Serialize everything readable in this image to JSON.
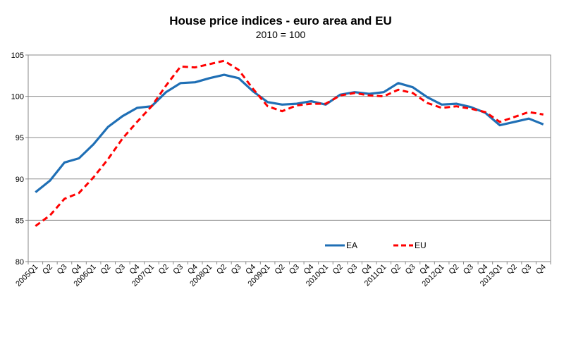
{
  "chart_data": {
    "type": "line",
    "title": "House price indices - euro area and EU",
    "subtitle": "2010 = 100",
    "xlabel": "",
    "ylabel": "",
    "ylim": [
      80,
      105
    ],
    "yticks": [
      80,
      85,
      90,
      95,
      100,
      105
    ],
    "grid": true,
    "legend_position": "bottom-center",
    "categories": [
      "2005Q1",
      "Q2",
      "Q3",
      "Q4",
      "2006Q1",
      "Q2",
      "Q3",
      "Q4",
      "2007Q1",
      "Q2",
      "Q3",
      "Q4",
      "2008Q1",
      "Q2",
      "Q3",
      "Q4",
      "2009Q1",
      "Q2",
      "Q3",
      "Q4",
      "2010Q1",
      "Q2",
      "Q3",
      "Q4",
      "2011Q1",
      "Q2",
      "Q3",
      "Q4",
      "2012Q1",
      "Q2",
      "Q3",
      "Q4",
      "2013Q1",
      "Q2",
      "Q3",
      "Q4"
    ],
    "series": [
      {
        "name": "EA",
        "color": "#1f6fb5",
        "style": "solid",
        "values": [
          88.4,
          89.8,
          92.0,
          92.5,
          94.2,
          96.3,
          97.6,
          98.6,
          98.8,
          100.5,
          101.6,
          101.7,
          102.2,
          102.6,
          102.2,
          100.6,
          99.3,
          99.0,
          99.1,
          99.4,
          99.0,
          100.2,
          100.5,
          100.3,
          100.5,
          101.6,
          101.1,
          99.9,
          99.0,
          99.1,
          98.7,
          98.0,
          96.5,
          96.9,
          97.3,
          96.6
        ]
      },
      {
        "name": "EU",
        "color": "#ff0000",
        "style": "dashed",
        "values": [
          84.3,
          85.6,
          87.6,
          88.3,
          90.2,
          92.4,
          94.9,
          96.9,
          98.8,
          101.3,
          103.6,
          103.5,
          103.9,
          104.3,
          103.2,
          100.9,
          98.8,
          98.2,
          98.9,
          99.1,
          99.1,
          100.1,
          100.4,
          100.1,
          100.0,
          100.8,
          100.4,
          99.2,
          98.6,
          98.8,
          98.5,
          98.1,
          96.9,
          97.5,
          98.1,
          97.8
        ]
      }
    ]
  }
}
